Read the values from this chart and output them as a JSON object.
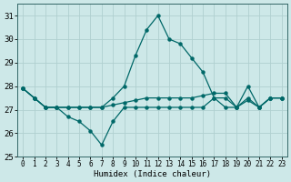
{
  "xlabel": "Humidex (Indice chaleur)",
  "background_color": "#cde8e8",
  "grid_color": "#b0d0d0",
  "line_color": "#006868",
  "x": [
    0,
    1,
    2,
    3,
    4,
    5,
    6,
    7,
    8,
    9,
    10,
    11,
    12,
    13,
    14,
    15,
    16,
    17,
    18,
    19,
    20,
    21,
    22,
    23
  ],
  "series": [
    [
      27.9,
      27.5,
      27.1,
      27.1,
      27.1,
      27.1,
      27.1,
      27.1,
      27.5,
      28.0,
      29.3,
      30.4,
      31.0,
      30.0,
      29.8,
      29.2,
      28.6,
      27.5,
      27.1,
      27.1,
      28.0,
      27.1,
      27.5,
      27.5
    ],
    [
      27.9,
      27.5,
      27.1,
      27.1,
      27.1,
      27.1,
      27.1,
      27.1,
      27.2,
      27.3,
      27.4,
      27.5,
      27.5,
      27.5,
      27.5,
      27.5,
      27.6,
      27.7,
      27.7,
      27.1,
      27.5,
      27.1,
      27.5,
      27.5
    ],
    [
      27.9,
      27.5,
      27.1,
      27.1,
      26.7,
      26.5,
      26.1,
      25.5,
      26.5,
      27.1,
      27.1,
      27.1,
      27.1,
      27.1,
      27.1,
      27.1,
      27.1,
      27.5,
      27.5,
      27.1,
      27.4,
      27.1,
      27.5,
      27.5
    ]
  ],
  "ylim": [
    25.0,
    31.5
  ],
  "yticks": [
    25,
    26,
    27,
    28,
    29,
    30,
    31
  ],
  "xticks": [
    0,
    1,
    2,
    3,
    4,
    5,
    6,
    7,
    8,
    9,
    10,
    11,
    12,
    13,
    14,
    15,
    16,
    17,
    18,
    19,
    20,
    21,
    22,
    23
  ],
  "figsize": [
    3.2,
    2.0
  ],
  "dpi": 100
}
